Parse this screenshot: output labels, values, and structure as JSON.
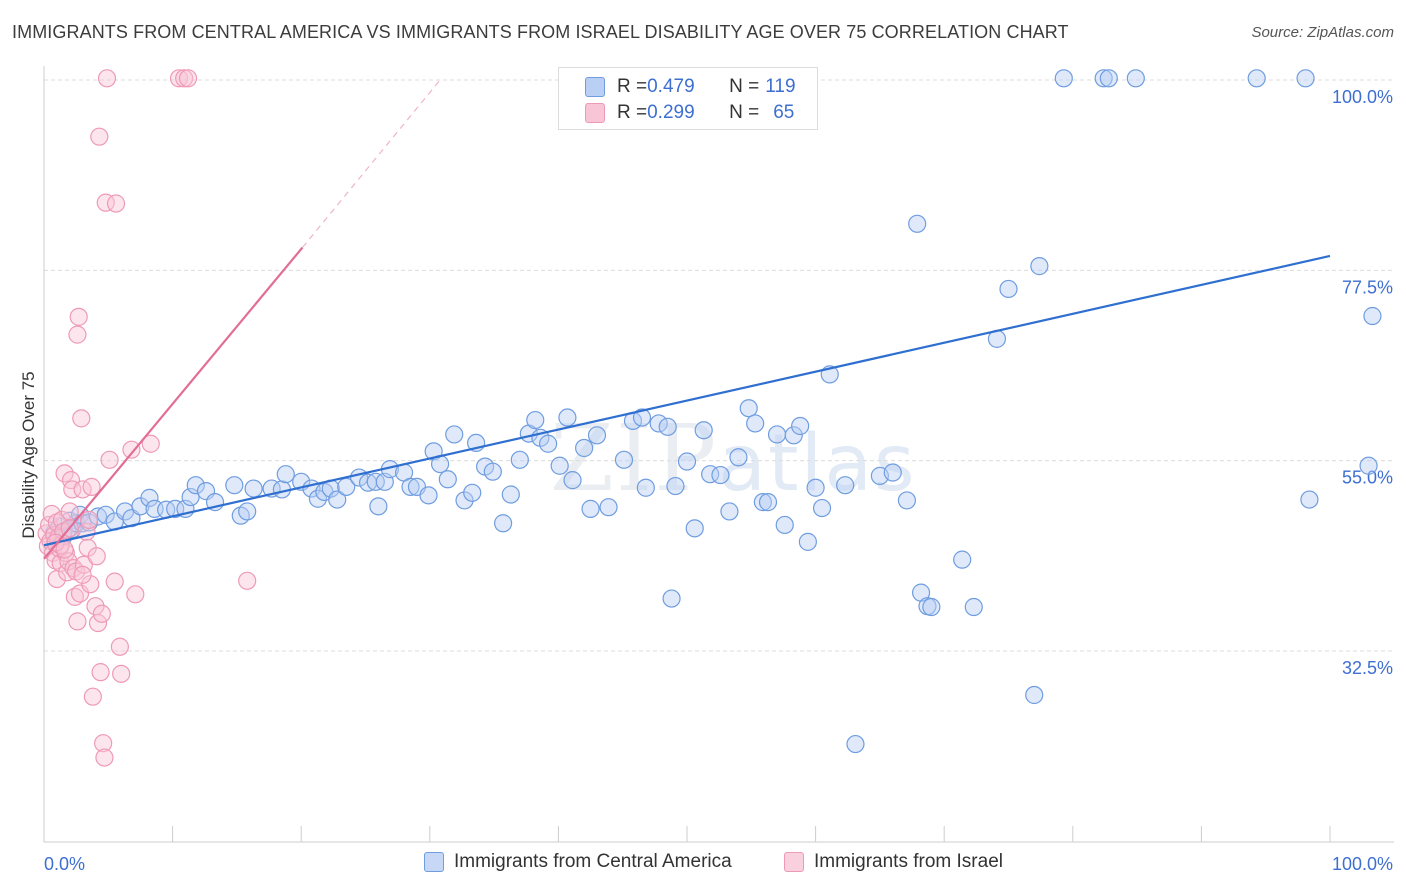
{
  "title": "IMMIGRANTS FROM CENTRAL AMERICA VS IMMIGRANTS FROM ISRAEL DISABILITY AGE OVER 75 CORRELATION CHART",
  "source": "Source: ZipAtlas.com",
  "watermark": {
    "zip": "ZIP",
    "atlas": "atlas"
  },
  "stats": [
    {
      "r_label": "R = ",
      "r_value": "0.479",
      "n_label": "N = ",
      "n_value": "119",
      "color": "#6f9de0",
      "fill": "#b9cff3"
    },
    {
      "r_label": "R = ",
      "r_value": "0.299",
      "n_label": "N = ",
      "n_value": "65",
      "color": "#ee9ab7",
      "fill": "#f8c5d6"
    }
  ],
  "legend": [
    {
      "label": "Immigrants from Central America",
      "color": "#6f9de0",
      "fill": "#c6d8f5"
    },
    {
      "label": "Immigrants from Israel",
      "color": "#ee9ab7",
      "fill": "#f8d0de"
    }
  ],
  "chart_data": {
    "type": "scatter",
    "title": "IMMIGRANTS FROM CENTRAL AMERICA VS IMMIGRANTS FROM ISRAEL DISABILITY AGE OVER 75 CORRELATION CHART",
    "xlabel": "",
    "ylabel": "Disability Age Over 75",
    "xlim": [
      0,
      100
    ],
    "ylim": [
      10,
      102
    ],
    "x_tick_labels": [
      "0.0%",
      "100.0%"
    ],
    "y_ticks": [
      32.5,
      55.0,
      77.5,
      100.0
    ],
    "y_tick_labels": [
      "32.5%",
      "55.0%",
      "77.5%",
      "100.0%"
    ],
    "grid": true,
    "legend_position": "bottom-center",
    "series": [
      {
        "name": "Immigrants from Central America",
        "color": "#6f9de0",
        "trend": {
          "x": [
            0,
            100
          ],
          "y": [
            45.0,
            79.2
          ],
          "dashed_beyond": null
        },
        "points": [
          [
            0.8,
            46.5
          ],
          [
            1.2,
            47.2
          ],
          [
            1.5,
            46.0
          ],
          [
            1.8,
            46.8
          ],
          [
            2.0,
            47.9
          ],
          [
            2.2,
            46.9
          ],
          [
            2.5,
            47.6
          ],
          [
            2.8,
            48.6
          ],
          [
            3.0,
            47.6
          ],
          [
            3.5,
            47.7
          ],
          [
            4.2,
            48.4
          ],
          [
            4.8,
            48.6
          ],
          [
            5.5,
            47.8
          ],
          [
            6.3,
            49.0
          ],
          [
            6.8,
            48.2
          ],
          [
            7.5,
            49.6
          ],
          [
            8.2,
            50.6
          ],
          [
            8.6,
            49.3
          ],
          [
            9.5,
            49.2
          ],
          [
            10.2,
            49.3
          ],
          [
            11.0,
            49.3
          ],
          [
            11.4,
            50.7
          ],
          [
            11.8,
            52.1
          ],
          [
            12.6,
            51.4
          ],
          [
            13.3,
            50.1
          ],
          [
            14.8,
            52.1
          ],
          [
            15.3,
            48.5
          ],
          [
            15.8,
            49.0
          ],
          [
            16.3,
            51.7
          ],
          [
            17.7,
            51.7
          ],
          [
            18.5,
            51.6
          ],
          [
            18.8,
            53.4
          ],
          [
            20.0,
            52.5
          ],
          [
            20.8,
            51.7
          ],
          [
            21.3,
            50.5
          ],
          [
            21.8,
            51.3
          ],
          [
            22.3,
            51.7
          ],
          [
            22.8,
            50.4
          ],
          [
            23.5,
            51.9
          ],
          [
            24.5,
            53.0
          ],
          [
            25.2,
            52.4
          ],
          [
            25.8,
            52.5
          ],
          [
            26.0,
            49.6
          ],
          [
            26.5,
            52.5
          ],
          [
            26.9,
            54.0
          ],
          [
            28.0,
            53.6
          ],
          [
            28.5,
            51.9
          ],
          [
            29.0,
            51.9
          ],
          [
            29.9,
            50.9
          ],
          [
            30.3,
            56.1
          ],
          [
            30.8,
            54.6
          ],
          [
            31.4,
            52.8
          ],
          [
            31.9,
            58.1
          ],
          [
            32.7,
            50.3
          ],
          [
            33.3,
            51.2
          ],
          [
            33.6,
            57.1
          ],
          [
            34.3,
            54.3
          ],
          [
            34.9,
            53.7
          ],
          [
            35.7,
            47.6
          ],
          [
            36.3,
            51.0
          ],
          [
            37.0,
            55.1
          ],
          [
            37.7,
            58.2
          ],
          [
            38.2,
            59.8
          ],
          [
            38.6,
            57.7
          ],
          [
            39.2,
            57.0
          ],
          [
            40.1,
            54.4
          ],
          [
            40.7,
            60.1
          ],
          [
            41.1,
            52.7
          ],
          [
            42.0,
            56.5
          ],
          [
            42.5,
            49.3
          ],
          [
            43.0,
            58.0
          ],
          [
            43.9,
            49.5
          ],
          [
            45.1,
            55.1
          ],
          [
            45.8,
            59.7
          ],
          [
            46.5,
            60.1
          ],
          [
            46.8,
            51.8
          ],
          [
            47.8,
            59.4
          ],
          [
            48.5,
            59.0
          ],
          [
            48.8,
            38.7
          ],
          [
            49.1,
            52.0
          ],
          [
            50.0,
            54.9
          ],
          [
            50.6,
            47.0
          ],
          [
            51.3,
            58.6
          ],
          [
            51.8,
            53.4
          ],
          [
            52.6,
            53.3
          ],
          [
            53.3,
            49.0
          ],
          [
            54.0,
            55.4
          ],
          [
            54.8,
            61.2
          ],
          [
            55.3,
            59.4
          ],
          [
            55.9,
            50.1
          ],
          [
            56.3,
            50.1
          ],
          [
            57.0,
            58.1
          ],
          [
            57.6,
            47.4
          ],
          [
            58.3,
            58.0
          ],
          [
            58.8,
            59.1
          ],
          [
            59.4,
            45.4
          ],
          [
            60.0,
            51.8
          ],
          [
            60.5,
            49.4
          ],
          [
            61.1,
            65.2
          ],
          [
            62.3,
            52.1
          ],
          [
            63.1,
            21.5
          ],
          [
            65.0,
            53.2
          ],
          [
            66.0,
            53.6
          ],
          [
            67.1,
            50.3
          ],
          [
            67.9,
            83.0
          ],
          [
            68.2,
            39.4
          ],
          [
            68.7,
            37.8
          ],
          [
            69.0,
            37.7
          ],
          [
            71.4,
            43.3
          ],
          [
            72.3,
            37.7
          ],
          [
            74.1,
            69.4
          ],
          [
            75.0,
            75.3
          ],
          [
            77.0,
            27.3
          ],
          [
            77.4,
            78.0
          ],
          [
            79.3,
            100.2
          ],
          [
            82.4,
            100.2
          ],
          [
            82.8,
            100.2
          ],
          [
            84.9,
            100.2
          ],
          [
            94.3,
            100.2
          ],
          [
            98.1,
            100.2
          ],
          [
            98.4,
            50.4
          ],
          [
            103.0,
            54.4
          ],
          [
            103.3,
            72.1
          ]
        ]
      },
      {
        "name": "Immigrants from Israel",
        "color": "#ee9ab7",
        "trend": {
          "x": [
            0,
            20.1
          ],
          "y": [
            43.4,
            80.2
          ],
          "dashed_to": [
            30.8,
            100.0
          ]
        },
        "points": [
          [
            0.2,
            46.4
          ],
          [
            0.3,
            44.9
          ],
          [
            0.4,
            47.4
          ],
          [
            0.5,
            45.5
          ],
          [
            0.6,
            48.7
          ],
          [
            0.7,
            44.1
          ],
          [
            0.8,
            46.2
          ],
          [
            0.9,
            43.2
          ],
          [
            1.0,
            47.7
          ],
          [
            1.0,
            41.0
          ],
          [
            1.1,
            45.9
          ],
          [
            1.2,
            44.6
          ],
          [
            1.3,
            42.9
          ],
          [
            1.4,
            48.0
          ],
          [
            1.5,
            46.6
          ],
          [
            1.6,
            53.5
          ],
          [
            1.7,
            44.1
          ],
          [
            1.8,
            41.8
          ],
          [
            1.9,
            43.1
          ],
          [
            2.0,
            47.0
          ],
          [
            2.1,
            52.7
          ],
          [
            2.2,
            51.6
          ],
          [
            2.3,
            42.3
          ],
          [
            2.4,
            38.9
          ],
          [
            2.5,
            41.9
          ],
          [
            2.6,
            69.9
          ],
          [
            2.6,
            36.0
          ],
          [
            2.7,
            72.0
          ],
          [
            2.8,
            39.3
          ],
          [
            2.9,
            60.0
          ],
          [
            3.0,
            51.6
          ],
          [
            3.1,
            42.7
          ],
          [
            3.3,
            46.6
          ],
          [
            3.4,
            44.7
          ],
          [
            3.6,
            40.4
          ],
          [
            3.7,
            51.9
          ],
          [
            3.8,
            27.1
          ],
          [
            4.0,
            37.8
          ],
          [
            4.1,
            43.7
          ],
          [
            4.2,
            35.8
          ],
          [
            4.3,
            93.3
          ],
          [
            4.4,
            30.0
          ],
          [
            4.5,
            36.9
          ],
          [
            4.6,
            21.6
          ],
          [
            4.7,
            19.9
          ],
          [
            4.8,
            85.5
          ],
          [
            4.9,
            100.2
          ],
          [
            5.1,
            55.1
          ],
          [
            5.5,
            40.7
          ],
          [
            5.6,
            85.4
          ],
          [
            5.9,
            33.0
          ],
          [
            6.0,
            29.8
          ],
          [
            6.8,
            56.3
          ],
          [
            7.1,
            39.2
          ],
          [
            8.3,
            57.0
          ],
          [
            10.5,
            100.2
          ],
          [
            10.9,
            100.2
          ],
          [
            11.2,
            100.2
          ],
          [
            15.8,
            40.8
          ],
          [
            3.5,
            48.0
          ],
          [
            1.3,
            45.0
          ],
          [
            0.9,
            45.3
          ],
          [
            2.0,
            49.0
          ],
          [
            1.6,
            44.5
          ],
          [
            3.0,
            41.5
          ]
        ]
      }
    ]
  }
}
